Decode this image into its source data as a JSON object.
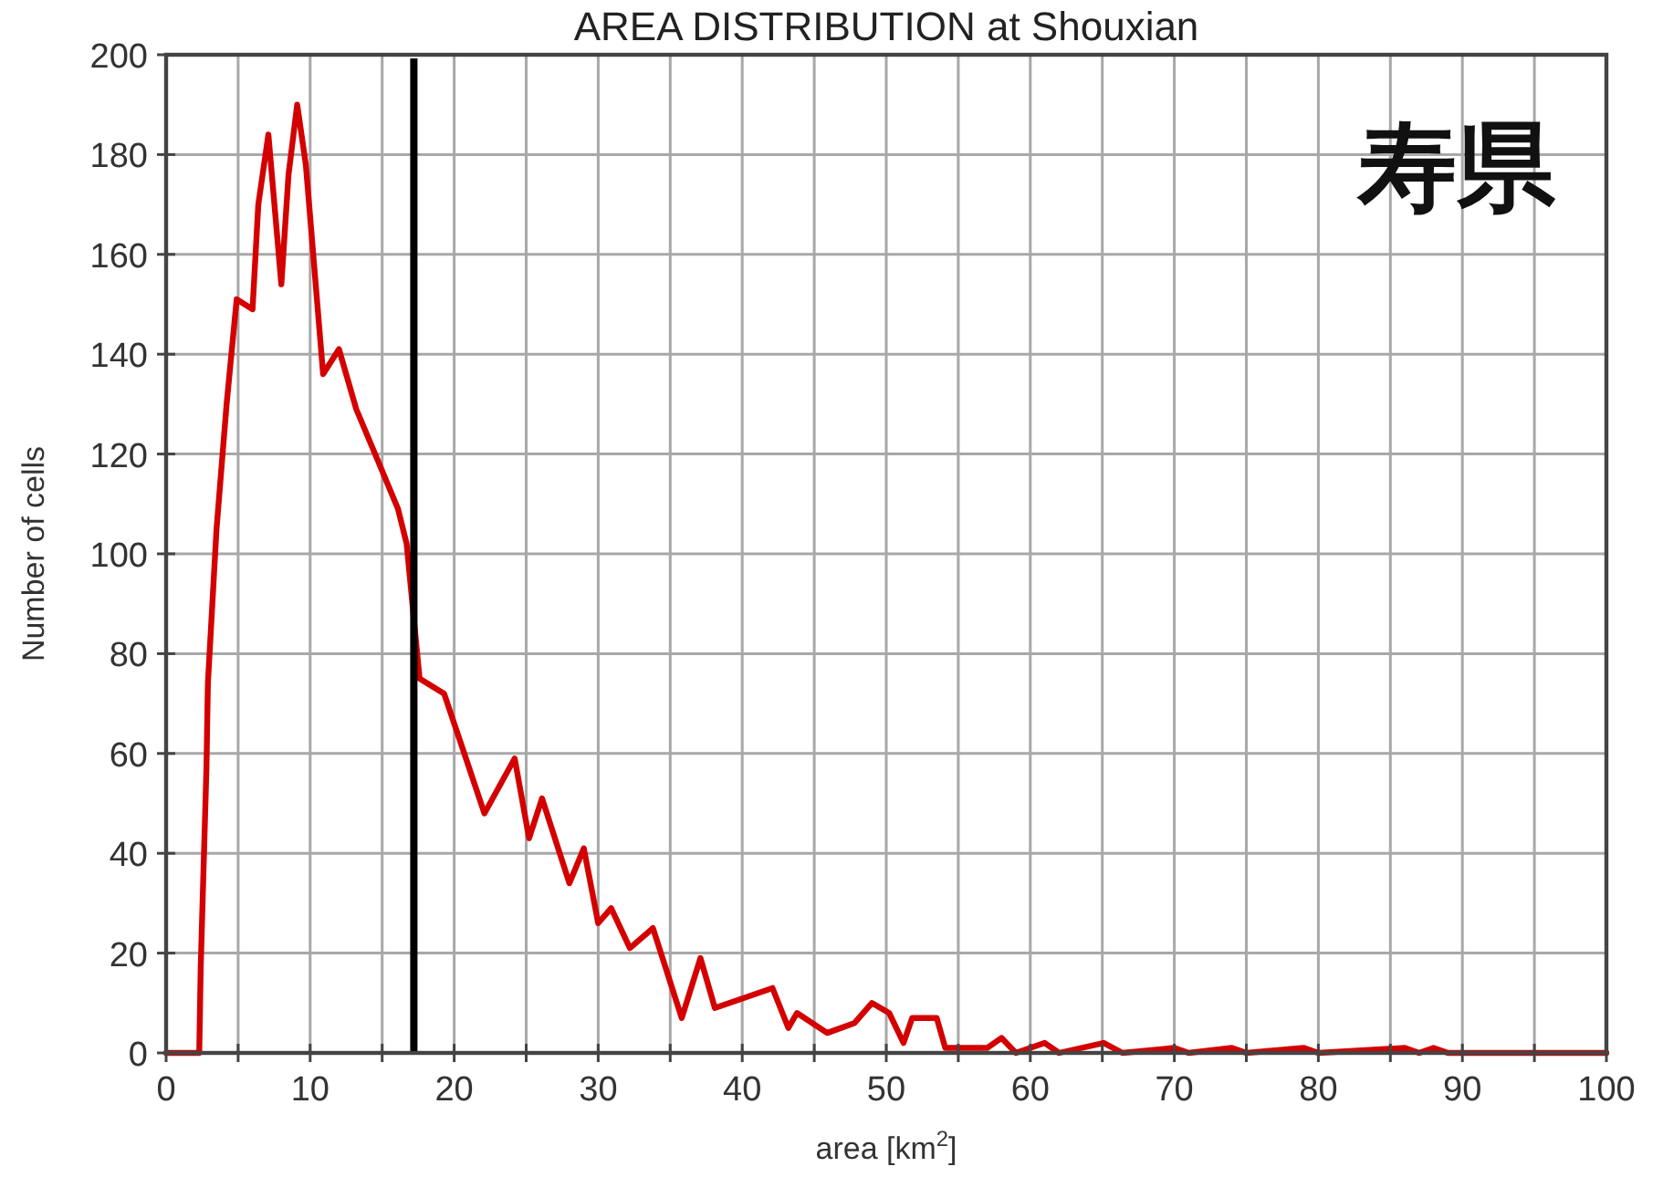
{
  "chart_data": {
    "type": "line",
    "title": "AREA DISTRIBUTION at Shouxian",
    "xlabel": "area [km$^{2}$]",
    "ylabel": "Number of cells",
    "annotations": [
      "寿県"
    ],
    "x": [
      0,
      2.3,
      2.4,
      2.8,
      2.9,
      3.5,
      4.2,
      4.9,
      6.0,
      6.4,
      7.1,
      8.0,
      8.5,
      9.1,
      9.7,
      10.9,
      12.0,
      13.2,
      14.8,
      16.1,
      16.7,
      17.6,
      19.3,
      22.1,
      24.2,
      25.2,
      26.1,
      28.0,
      29.0,
      30.0,
      30.9,
      32.2,
      33.8,
      35.8,
      37.1,
      38.1,
      42.1,
      43.2,
      43.8,
      45.9,
      47.8,
      49.0,
      50.2,
      51.2,
      51.8,
      53.5,
      54.1,
      57.0,
      58.0,
      59.0,
      61.0,
      62.0,
      65.1,
      66.4,
      70,
      71,
      74,
      75,
      79,
      80,
      86,
      87,
      88,
      89,
      100
    ],
    "series": [
      {
        "color": "#d40000",
        "values": [
          0,
          0,
          17,
          57,
          74,
          105,
          130,
          151,
          149,
          170,
          184,
          154,
          176,
          190,
          178,
          136,
          141,
          129,
          118,
          109,
          102,
          75,
          72,
          48,
          59,
          43,
          51,
          34,
          41,
          26,
          29,
          21,
          25,
          7,
          19,
          9,
          13,
          5,
          8,
          4,
          6,
          10,
          8,
          2,
          7,
          7,
          1,
          1,
          3,
          0,
          2,
          0,
          2,
          0,
          1,
          0,
          1,
          0,
          1,
          0,
          1,
          0,
          1,
          0,
          0
        ]
      }
    ],
    "xlim": [
      0,
      100
    ],
    "ylim": [
      0,
      200
    ],
    "xticks": [
      0,
      {
        "value": 5,
        "label": null
      },
      10,
      {
        "value": 15,
        "label": null
      },
      20,
      {
        "value": 25,
        "label": null
      },
      30,
      {
        "value": 35,
        "label": null
      },
      40,
      {
        "value": 45,
        "label": null
      },
      50,
      {
        "value": 55,
        "label": null
      },
      60,
      {
        "value": 65,
        "label": null
      },
      70,
      {
        "value": 75,
        "label": null
      },
      80,
      {
        "value": 85,
        "label": null
      },
      90,
      {
        "value": 95,
        "label": null
      },
      100
    ],
    "yticks": [
      0,
      20,
      40,
      60,
      80,
      100,
      120,
      140,
      160,
      180,
      200
    ],
    "grid": true,
    "line_style": "solid",
    "ref_lines": [
      {
        "axis": "x",
        "value": 17.2,
        "color": "#000000"
      }
    ]
  }
}
